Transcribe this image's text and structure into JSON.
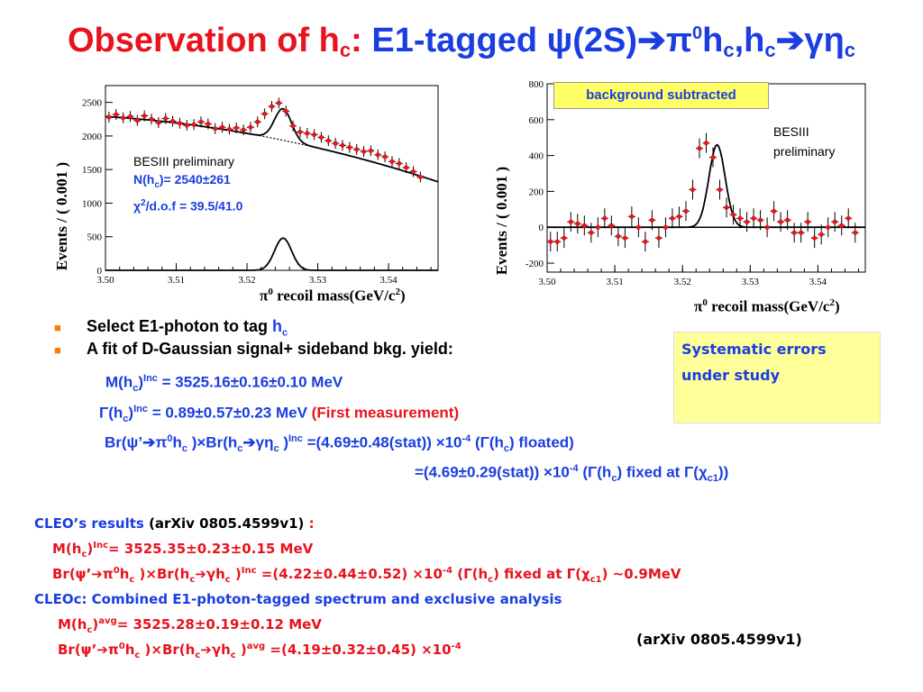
{
  "title": {
    "red_part": "Observation of h",
    "red_sub": "c",
    "red_colon": ":",
    "blue_part": " E1-tagged ψ(2S)➔π",
    "blue_sup": "0",
    "blue_mid": "h",
    "blue_sub1": "c",
    "blue_mid2": ",h",
    "blue_sub2": "c",
    "blue_mid3": "➔γη",
    "blue_sub3": "c"
  },
  "left_plot": {
    "ylabel": "Events / ( 0.001 )",
    "xlabel_pre": "π",
    "xlabel_sup": "0",
    "xlabel_post": " recoil mass(GeV/c",
    "xlabel_sup2": "2",
    "xlabel_end": ")",
    "note_1": "BESIII preliminary",
    "note_2": "N(h",
    "note_2_sub": "c",
    "note_2_post": ")= 2540±261",
    "note_3": "χ",
    "note_3_sup": "2",
    "note_3_post": "/d.o.f = 39.5/41.0"
  },
  "right_plot": {
    "ylabel": "Events / ( 0.001 )",
    "xlabel_pre": "π",
    "xlabel_sup": "0",
    "xlabel_post": " recoil mass(GeV/c",
    "xlabel_sup2": "2",
    "xlabel_end": ")",
    "banner": "background subtracted",
    "note_1": "BESIII",
    "note_2": "preliminary"
  },
  "chart_data": [
    {
      "type": "scatter",
      "x_ticks": [
        "3.50",
        "3.51",
        "3.52",
        "3.53",
        "3.54"
      ],
      "y_ticks": [
        "0",
        "500",
        "1000",
        "1500",
        "2000",
        "2500"
      ],
      "xlim": [
        3.5,
        3.547
      ],
      "ylim": [
        0,
        2750
      ],
      "series": [
        {
          "x": [
            3.5005,
            3.5015,
            3.5025,
            3.5035,
            3.5045,
            3.5055,
            3.5065,
            3.5075,
            3.5085,
            3.5095,
            3.5105,
            3.5115,
            3.5125,
            3.5135,
            3.5145,
            3.5155,
            3.5165,
            3.5175,
            3.5185,
            3.5195,
            3.5205,
            3.5215,
            3.5225,
            3.5235,
            3.5245,
            3.5255,
            3.5265,
            3.5275,
            3.5285,
            3.5295,
            3.5305,
            3.5315,
            3.5325,
            3.5335,
            3.5345,
            3.5355,
            3.5365,
            3.5375,
            3.5385,
            3.5395,
            3.5405,
            3.5415,
            3.5425,
            3.5435,
            3.5445
          ],
          "y": [
            2280,
            2320,
            2270,
            2290,
            2230,
            2300,
            2250,
            2200,
            2260,
            2220,
            2190,
            2160,
            2170,
            2210,
            2180,
            2110,
            2130,
            2100,
            2120,
            2090,
            2130,
            2210,
            2330,
            2440,
            2490,
            2370,
            2150,
            2060,
            2040,
            2020,
            1980,
            1930,
            1890,
            1860,
            1830,
            1800,
            1770,
            1780,
            1720,
            1690,
            1620,
            1590,
            1530,
            1470,
            1390
          ]
        }
      ]
    },
    {
      "type": "scatter",
      "x_ticks": [
        "3.50",
        "3.51",
        "3.52",
        "3.53",
        "3.54"
      ],
      "y_ticks": [
        "-200",
        "0",
        "200",
        "400",
        "600",
        "800"
      ],
      "xlim": [
        3.5,
        3.547
      ],
      "ylim": [
        -250,
        800
      ],
      "series": [
        {
          "x": [
            3.5005,
            3.5015,
            3.5025,
            3.5035,
            3.5045,
            3.5055,
            3.5065,
            3.5075,
            3.5085,
            3.5095,
            3.5105,
            3.5115,
            3.5125,
            3.5135,
            3.5145,
            3.5155,
            3.5165,
            3.5175,
            3.5185,
            3.5195,
            3.5205,
            3.5215,
            3.5225,
            3.5235,
            3.5245,
            3.5255,
            3.5265,
            3.5275,
            3.5285,
            3.5295,
            3.5305,
            3.5315,
            3.5325,
            3.5335,
            3.5345,
            3.5355,
            3.5365,
            3.5375,
            3.5385,
            3.5395,
            3.5405,
            3.5415,
            3.5425,
            3.5435,
            3.5445,
            3.5455
          ],
          "y": [
            -80,
            -80,
            -60,
            30,
            20,
            10,
            -30,
            0,
            50,
            10,
            -50,
            -60,
            60,
            0,
            -80,
            40,
            -60,
            0,
            50,
            60,
            90,
            210,
            440,
            470,
            390,
            210,
            110,
            70,
            50,
            30,
            50,
            40,
            0,
            90,
            30,
            40,
            -30,
            -30,
            30,
            -60,
            -40,
            0,
            30,
            10,
            50,
            -30
          ]
        }
      ]
    }
  ],
  "bullets": [
    {
      "text": "Select E1-photon to tag ",
      "blue": "h",
      "blue_sub": "c"
    },
    {
      "text": "A fit of D-Gaussian signal+ sideband bkg. yield:"
    }
  ],
  "equations": {
    "m_pre": "M(h",
    "m_sub": "c",
    "m_mid": ")",
    "m_sup": "Inc",
    "m_val": " = 3525.16±0.16±0.10 MeV",
    "g_pre": "Γ(h",
    "g_sub": "c",
    "g_mid": ")",
    "g_sup": "Inc",
    "g_val": " = 0.89±0.57±0.23 MeV ",
    "g_note": "(First measurement)",
    "br_1": "Br(ψ’➔π",
    "br_sup0": "0",
    "br_2": "h",
    "br_sub1": "c",
    "br_3": " )×Br(h",
    "br_sub2": "c",
    "br_4": "➔γη",
    "br_sub3": "c",
    "br_5": " )",
    "br_sup": "Inc",
    "br_6": " =(4.69±0.48(stat)) ×10",
    "br_exp": "-4",
    "br_7": " (Γ(h",
    "br_sub4": "c",
    "br_8": ") floated)",
    "br2_1": "=(4.69±0.29(stat)) ×10",
    "br2_exp": "-4",
    "br2_2": " (Γ(h",
    "br2_sub": "c",
    "br2_3": ") fixed at Γ(χ",
    "br2_sub2": "c1",
    "br2_4": "))"
  },
  "systematics": {
    "line1": "Systematic errors",
    "line2": "under study"
  },
  "cleo": {
    "head_blue": "CLEO’s results ",
    "head_paren": "(arXiv 0805.4599v1)",
    "head_colon": " :",
    "l1_pre": "M(h",
    "l1_sub": "c",
    "l1_mid": ")",
    "l1_sup": "Inc",
    "l1_val": "= 3525.35±0.23±0.15 MeV",
    "l2_1": "Br(ψ’➔π",
    "l2_sup0": "0",
    "l2_2": "h",
    "l2_sub1": "c",
    "l2_3": " )×Br(h",
    "l2_sub2": "c",
    "l2_4": "➔γh",
    "l2_sub3": "c",
    "l2_5": " )",
    "l2_sup": "Inc",
    "l2_6": " =(4.22±0.44±0.52) ×10",
    "l2_exp": "-4",
    "l2_7": "   (Γ(h",
    "l2_sub4": "c",
    "l2_8": ") fixed at Γ(χ",
    "l2_sub5": "c1",
    "l2_9": ") ~0.9MeV",
    "head2": "CLEOc:  Combined E1-photon-tagged spectrum and exclusive analysis",
    "l3_pre": "M(h",
    "l3_sub": "c",
    "l3_mid": ")",
    "l3_sup": "avg",
    "l3_val": "= 3525.28±0.19±0.12 MeV",
    "l4_1": "Br(ψ’➔π",
    "l4_sup0": "0",
    "l4_2": "h",
    "l4_sub1": "c",
    "l4_3": " )×Br(h",
    "l4_sub2": "c",
    "l4_4": "➔γh",
    "l4_sub3": "c",
    "l4_5": " )",
    "l4_sup": "avg",
    "l4_6": " =(4.19±0.32±0.45) ×10",
    "l4_exp": "-4",
    "ref": "(arXiv 0805.4599v1)"
  }
}
